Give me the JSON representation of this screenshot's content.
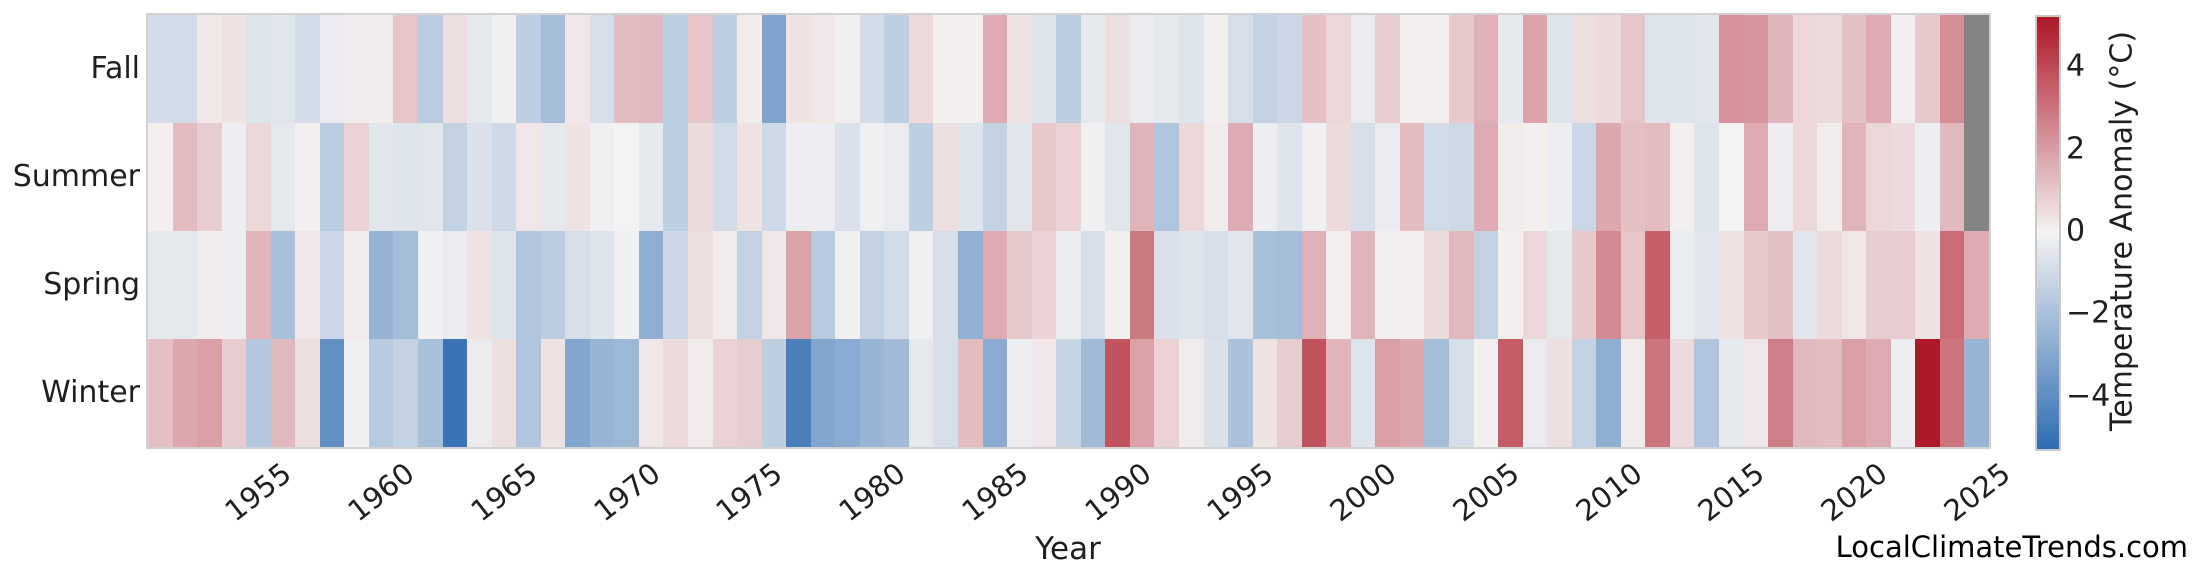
{
  "figure": {
    "watermark": "LocalClimateTrends.com"
  },
  "chart_data": {
    "type": "heatmap",
    "title": "",
    "xlabel": "Year",
    "ylabel": "",
    "grid": false,
    "legend_position": "right-colorbar",
    "rows": [
      "Fall",
      "Summer",
      "Spring",
      "Winter"
    ],
    "year_start": 1951,
    "year_end": 2025,
    "x_tick_years": [
      1955,
      1960,
      1965,
      1970,
      1975,
      1980,
      1985,
      1990,
      1995,
      2000,
      2005,
      2010,
      2015,
      2020,
      2025
    ],
    "series": [
      {
        "name": "Fall",
        "values": [
          -0.9,
          -0.9,
          0.3,
          0.4,
          -0.6,
          -0.5,
          -0.9,
          -0.3,
          0.2,
          0.2,
          1.1,
          -1.5,
          0.5,
          -0.4,
          -0.1,
          -1.4,
          -2.1,
          0.3,
          -0.8,
          1.3,
          1.4,
          -1.4,
          1.1,
          -1.4,
          0.2,
          -3.1,
          0.4,
          0.3,
          -0.1,
          -0.9,
          -1.4,
          0.6,
          0.1,
          0.1,
          1.7,
          0.4,
          -0.6,
          -1.5,
          -0.4,
          0.5,
          -0.3,
          -0.4,
          -0.6,
          0.1,
          -0.8,
          -1.3,
          -1.1,
          1.2,
          0.7,
          -0.3,
          0.9,
          0.1,
          0.1,
          1.0,
          1.6,
          -0.4,
          1.9,
          -0.6,
          0.5,
          0.6,
          1.1,
          -0.6,
          -0.6,
          -0.5,
          2.3,
          2.2,
          1.5,
          0.7,
          0.6,
          1.2,
          1.7,
          0.1,
          1.0,
          2.4,
          null
        ]
      },
      {
        "name": "Summer",
        "values": [
          0.1,
          1.3,
          0.9,
          -0.2,
          0.7,
          -0.4,
          0.1,
          -1.5,
          0.8,
          -0.5,
          -0.6,
          -0.5,
          -1.3,
          -0.7,
          -1.0,
          0.3,
          -0.4,
          0.4,
          -0.1,
          0.0,
          -0.4,
          -1.4,
          0.6,
          -0.9,
          0.4,
          -1.0,
          -0.2,
          -0.2,
          -0.7,
          -0.1,
          -0.3,
          -1.4,
          0.5,
          -0.6,
          -1.3,
          -0.5,
          1.0,
          0.8,
          -0.1,
          -0.5,
          1.5,
          -1.8,
          0.7,
          0.2,
          1.7,
          -0.2,
          -0.6,
          -0.1,
          0.6,
          -0.8,
          -0.3,
          1.3,
          -0.9,
          -1.0,
          1.7,
          0.2,
          0.1,
          -0.2,
          -1.1,
          1.8,
          1.2,
          1.3,
          0.1,
          -0.6,
          0.0,
          1.7,
          -0.2,
          0.7,
          0.2,
          1.5,
          0.7,
          0.6,
          -0.2,
          1.4,
          null
        ]
      },
      {
        "name": "Spring",
        "values": [
          -0.4,
          -0.4,
          0.2,
          -0.2,
          1.5,
          -2.0,
          0.3,
          -1.1,
          0.2,
          -2.5,
          -2.1,
          -0.1,
          -0.3,
          0.4,
          -0.6,
          -1.8,
          -1.5,
          -0.8,
          -0.6,
          -0.1,
          -2.7,
          -1.1,
          0.5,
          0.2,
          -1.3,
          0.3,
          1.9,
          -1.6,
          -0.1,
          -1.3,
          -0.9,
          -0.1,
          -0.8,
          -2.6,
          1.7,
          1.0,
          0.8,
          -0.3,
          -0.8,
          0.1,
          2.9,
          -0.7,
          -0.6,
          -0.8,
          -0.5,
          -2.0,
          -2.1,
          1.6,
          0.1,
          1.5,
          0.1,
          0.1,
          0.6,
          1.4,
          -1.3,
          0.1,
          0.7,
          -0.4,
          1.0,
          2.5,
          1.1,
          3.5,
          -0.3,
          -0.5,
          0.4,
          1.0,
          1.2,
          -0.5,
          0.6,
          0.3,
          0.9,
          0.9,
          0.4,
          3.2,
          1.7
        ]
      },
      {
        "name": "Winter",
        "values": [
          1.2,
          1.8,
          2.0,
          0.9,
          -1.7,
          1.4,
          0.5,
          -3.9,
          -0.1,
          -1.6,
          -1.3,
          -2.0,
          -4.9,
          -0.3,
          0.5,
          -1.8,
          0.4,
          -3.0,
          -2.4,
          -2.3,
          0.3,
          0.6,
          0.2,
          0.8,
          0.9,
          -1.4,
          -4.5,
          -3.0,
          -2.8,
          -2.4,
          -2.2,
          -0.4,
          -0.8,
          1.3,
          -2.8,
          -0.2,
          0.3,
          -1.2,
          -2.2,
          3.8,
          1.9,
          0.8,
          0.2,
          -0.7,
          -1.9,
          0.4,
          0.9,
          3.8,
          1.5,
          -0.6,
          2.0,
          1.8,
          -2.1,
          -0.8,
          0.1,
          3.6,
          -0.3,
          0.5,
          -1.3,
          -2.7,
          0.2,
          3.0,
          0.6,
          -1.8,
          -0.4,
          0.3,
          2.8,
          1.4,
          1.3,
          2.0,
          1.7,
          -0.2,
          5.2,
          3.0,
          -2.4
        ]
      }
    ],
    "colorbar": {
      "label": "Temperature Anomaly (°C)",
      "ticks": [
        4,
        2,
        0,
        -2,
        -4
      ],
      "tick_labels": [
        "4",
        "2",
        "0",
        "−2",
        "−4"
      ],
      "vmin": -5.25,
      "vmax": 5.25,
      "color_positive_end": "#ae1627",
      "color_zero": "#f4f3f3",
      "color_negative_end": "#2e6cb3",
      "nan_color": "#848484"
    }
  }
}
